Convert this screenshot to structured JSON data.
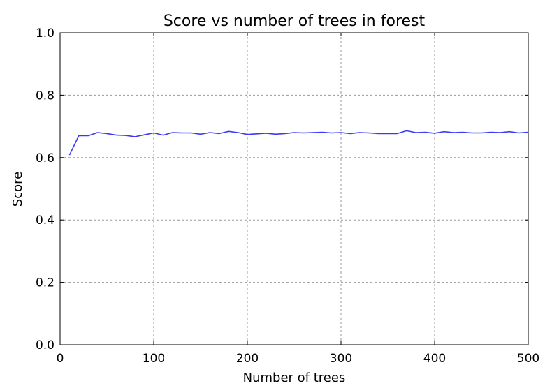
{
  "chart_data": {
    "type": "line",
    "title": "Score vs number of trees in forest",
    "xlabel": "Number of trees",
    "ylabel": "Score",
    "xlim": [
      0,
      500
    ],
    "ylim": [
      0.0,
      1.0
    ],
    "grid": true,
    "xticks": [
      0,
      100,
      200,
      300,
      400,
      500
    ],
    "xtick_labels": [
      "0",
      "100",
      "200",
      "300",
      "400",
      "500"
    ],
    "yticks": [
      0.0,
      0.2,
      0.4,
      0.6,
      0.8,
      1.0
    ],
    "ytick_labels": [
      "0.0",
      "0.2",
      "0.4",
      "0.6",
      "0.8",
      "1.0"
    ],
    "series": [
      {
        "color": "#3a3af5",
        "x": [
          10,
          20,
          30,
          40,
          50,
          60,
          70,
          80,
          90,
          100,
          110,
          120,
          130,
          140,
          150,
          160,
          170,
          180,
          190,
          200,
          210,
          220,
          230,
          240,
          250,
          260,
          270,
          280,
          290,
          300,
          310,
          320,
          330,
          340,
          350,
          360,
          370,
          380,
          390,
          400,
          410,
          420,
          430,
          440,
          450,
          460,
          470,
          480,
          490,
          500
        ],
        "y": [
          0.608,
          0.67,
          0.67,
          0.68,
          0.677,
          0.672,
          0.671,
          0.667,
          0.673,
          0.679,
          0.672,
          0.68,
          0.679,
          0.679,
          0.675,
          0.68,
          0.677,
          0.684,
          0.68,
          0.674,
          0.676,
          0.678,
          0.675,
          0.677,
          0.68,
          0.679,
          0.68,
          0.681,
          0.679,
          0.68,
          0.677,
          0.68,
          0.679,
          0.677,
          0.677,
          0.677,
          0.686,
          0.68,
          0.681,
          0.678,
          0.683,
          0.68,
          0.681,
          0.679,
          0.679,
          0.681,
          0.68,
          0.683,
          0.679,
          0.681
        ]
      }
    ]
  }
}
